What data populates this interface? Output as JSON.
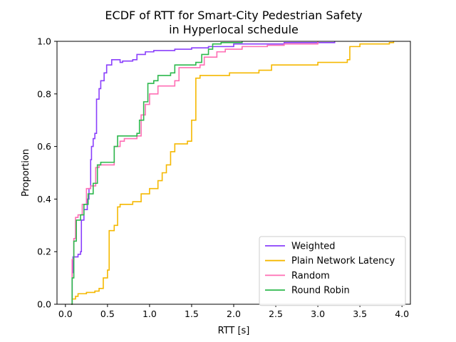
{
  "chart_data": {
    "type": "line",
    "title_lines": [
      "ECDF of RTT for Smart-City Pedestrian Safety",
      "in Hyperlocal schedule"
    ],
    "xlabel": "RTT [s]",
    "ylabel": "Proportion",
    "xlim": [
      -0.1,
      4.1
    ],
    "ylim": [
      0,
      1
    ],
    "xticks": [
      0.0,
      0.5,
      1.0,
      1.5,
      2.0,
      2.5,
      3.0,
      3.5,
      4.0
    ],
    "xtick_labels": [
      "0.0",
      "0.5",
      "1.0",
      "1.5",
      "2.0",
      "2.5",
      "3.0",
      "3.5",
      "4.0"
    ],
    "yticks": [
      0.0,
      0.2,
      0.4,
      0.6,
      0.8,
      1.0
    ],
    "ytick_labels": [
      "0.0",
      "0.2",
      "0.4",
      "0.6",
      "0.8",
      "1.0"
    ],
    "grid": false,
    "legend_position": "lower-right",
    "series": [
      {
        "name": "Weighted",
        "color": "#8a3ffc",
        "points": [
          [
            0.07,
            0.0
          ],
          [
            0.08,
            0.12
          ],
          [
            0.09,
            0.18
          ],
          [
            0.15,
            0.19
          ],
          [
            0.18,
            0.2
          ],
          [
            0.19,
            0.32
          ],
          [
            0.22,
            0.36
          ],
          [
            0.26,
            0.4
          ],
          [
            0.28,
            0.44
          ],
          [
            0.3,
            0.55
          ],
          [
            0.31,
            0.6
          ],
          [
            0.33,
            0.63
          ],
          [
            0.35,
            0.65
          ],
          [
            0.37,
            0.78
          ],
          [
            0.4,
            0.82
          ],
          [
            0.42,
            0.85
          ],
          [
            0.46,
            0.88
          ],
          [
            0.49,
            0.91
          ],
          [
            0.55,
            0.93
          ],
          [
            0.65,
            0.92
          ],
          [
            0.68,
            0.925
          ],
          [
            0.8,
            0.93
          ],
          [
            0.85,
            0.95
          ],
          [
            0.95,
            0.96
          ],
          [
            1.05,
            0.965
          ],
          [
            1.3,
            0.97
          ],
          [
            1.5,
            0.975
          ],
          [
            1.7,
            0.98
          ],
          [
            2.0,
            0.99
          ],
          [
            2.4,
            0.99
          ],
          [
            2.6,
            0.995
          ],
          [
            3.2,
            1.0
          ]
        ]
      },
      {
        "name": "Plain Network Latency",
        "color": "#f5b800",
        "points": [
          [
            0.07,
            0.0
          ],
          [
            0.08,
            0.02
          ],
          [
            0.12,
            0.03
          ],
          [
            0.15,
            0.04
          ],
          [
            0.25,
            0.045
          ],
          [
            0.35,
            0.05
          ],
          [
            0.4,
            0.06
          ],
          [
            0.45,
            0.1
          ],
          [
            0.5,
            0.13
          ],
          [
            0.52,
            0.28
          ],
          [
            0.58,
            0.3
          ],
          [
            0.62,
            0.37
          ],
          [
            0.65,
            0.38
          ],
          [
            0.8,
            0.39
          ],
          [
            0.9,
            0.42
          ],
          [
            1.0,
            0.44
          ],
          [
            1.1,
            0.47
          ],
          [
            1.15,
            0.5
          ],
          [
            1.2,
            0.53
          ],
          [
            1.25,
            0.58
          ],
          [
            1.3,
            0.61
          ],
          [
            1.45,
            0.62
          ],
          [
            1.5,
            0.7
          ],
          [
            1.55,
            0.86
          ],
          [
            1.6,
            0.87
          ],
          [
            1.8,
            0.87
          ],
          [
            1.95,
            0.88
          ],
          [
            2.3,
            0.89
          ],
          [
            2.45,
            0.91
          ],
          [
            2.6,
            0.91
          ],
          [
            3.0,
            0.92
          ],
          [
            3.35,
            0.93
          ],
          [
            3.38,
            0.98
          ],
          [
            3.5,
            0.99
          ],
          [
            3.85,
            0.995
          ],
          [
            3.9,
            1.0
          ]
        ]
      },
      {
        "name": "Random",
        "color": "#ff6eb4",
        "points": [
          [
            0.07,
            0.0
          ],
          [
            0.08,
            0.17
          ],
          [
            0.1,
            0.25
          ],
          [
            0.12,
            0.33
          ],
          [
            0.15,
            0.34
          ],
          [
            0.2,
            0.38
          ],
          [
            0.25,
            0.44
          ],
          [
            0.3,
            0.45
          ],
          [
            0.36,
            0.52
          ],
          [
            0.4,
            0.53
          ],
          [
            0.55,
            0.53
          ],
          [
            0.58,
            0.6
          ],
          [
            0.65,
            0.62
          ],
          [
            0.7,
            0.63
          ],
          [
            0.85,
            0.64
          ],
          [
            0.9,
            0.72
          ],
          [
            0.95,
            0.76
          ],
          [
            1.0,
            0.8
          ],
          [
            1.1,
            0.83
          ],
          [
            1.3,
            0.85
          ],
          [
            1.35,
            0.9
          ],
          [
            1.6,
            0.91
          ],
          [
            1.65,
            0.94
          ],
          [
            1.8,
            0.96
          ],
          [
            1.9,
            0.97
          ],
          [
            2.1,
            0.98
          ],
          [
            2.4,
            0.985
          ],
          [
            2.6,
            0.99
          ],
          [
            3.0,
            1.0
          ]
        ]
      },
      {
        "name": "Round Robin",
        "color": "#2db84d",
        "points": [
          [
            0.07,
            0.0
          ],
          [
            0.08,
            0.1
          ],
          [
            0.1,
            0.24
          ],
          [
            0.13,
            0.32
          ],
          [
            0.18,
            0.34
          ],
          [
            0.22,
            0.38
          ],
          [
            0.27,
            0.42
          ],
          [
            0.33,
            0.46
          ],
          [
            0.38,
            0.53
          ],
          [
            0.42,
            0.54
          ],
          [
            0.55,
            0.54
          ],
          [
            0.58,
            0.6
          ],
          [
            0.62,
            0.64
          ],
          [
            0.85,
            0.65
          ],
          [
            0.88,
            0.7
          ],
          [
            0.93,
            0.77
          ],
          [
            0.98,
            0.84
          ],
          [
            1.05,
            0.85
          ],
          [
            1.1,
            0.87
          ],
          [
            1.25,
            0.88
          ],
          [
            1.3,
            0.91
          ],
          [
            1.55,
            0.92
          ],
          [
            1.62,
            0.95
          ],
          [
            1.7,
            0.97
          ],
          [
            1.75,
            0.99
          ],
          [
            1.85,
            0.995
          ],
          [
            2.1,
            1.0
          ]
        ]
      }
    ]
  }
}
